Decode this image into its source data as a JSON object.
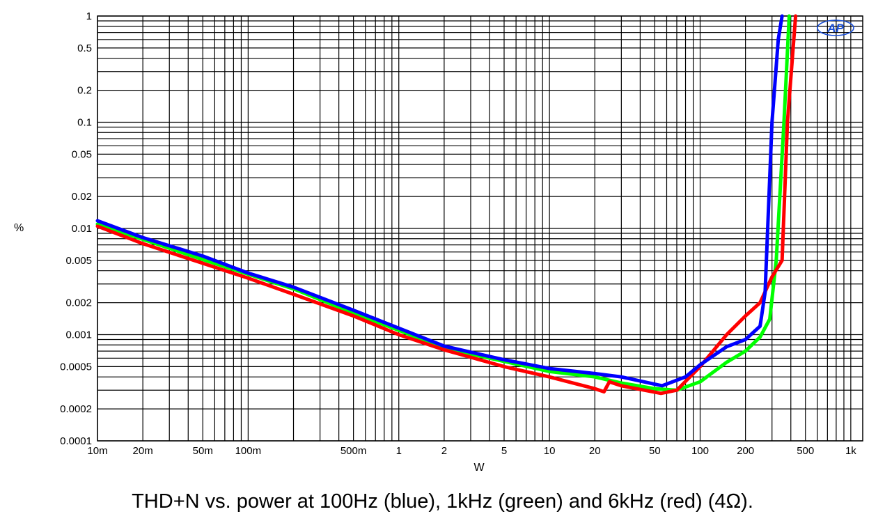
{
  "caption": "THD+N vs. power at 100Hz (blue), 1kHz (green) and 6kHz (red) (4Ω).",
  "logo_text": "AP",
  "chart_data": {
    "type": "line",
    "title": "",
    "xlabel": "W",
    "ylabel": "%",
    "xscale": "log",
    "yscale": "log",
    "xlim": [
      0.01,
      1200
    ],
    "ylim": [
      0.0001,
      1
    ],
    "grid": true,
    "x_ticks": [
      {
        "value": 0.01,
        "label": "10m"
      },
      {
        "value": 0.02,
        "label": "20m"
      },
      {
        "value": 0.05,
        "label": "50m"
      },
      {
        "value": 0.1,
        "label": "100m"
      },
      {
        "value": 0.5,
        "label": "500m"
      },
      {
        "value": 1,
        "label": "1"
      },
      {
        "value": 2,
        "label": "2"
      },
      {
        "value": 5,
        "label": "5"
      },
      {
        "value": 10,
        "label": "10"
      },
      {
        "value": 20,
        "label": "20"
      },
      {
        "value": 50,
        "label": "50"
      },
      {
        "value": 100,
        "label": "100"
      },
      {
        "value": 200,
        "label": "200"
      },
      {
        "value": 500,
        "label": "500"
      },
      {
        "value": 1000,
        "label": "1k"
      }
    ],
    "y_ticks": [
      {
        "value": 1,
        "label": "1"
      },
      {
        "value": 0.5,
        "label": "0.5"
      },
      {
        "value": 0.2,
        "label": "0.2"
      },
      {
        "value": 0.1,
        "label": "0.1"
      },
      {
        "value": 0.05,
        "label": "0.05"
      },
      {
        "value": 0.02,
        "label": "0.02"
      },
      {
        "value": 0.01,
        "label": "0.01"
      },
      {
        "value": 0.005,
        "label": "0.005"
      },
      {
        "value": 0.002,
        "label": "0.002"
      },
      {
        "value": 0.001,
        "label": "0.001"
      },
      {
        "value": 0.0005,
        "label": "0.0005"
      },
      {
        "value": 0.0002,
        "label": "0.0002"
      },
      {
        "value": 0.0001,
        "label": "0.0001"
      }
    ],
    "series": [
      {
        "color": "#0000ff",
        "points": [
          [
            0.01,
            0.0118
          ],
          [
            0.02,
            0.0082
          ],
          [
            0.05,
            0.0055
          ],
          [
            0.1,
            0.0038
          ],
          [
            0.2,
            0.0028
          ],
          [
            0.5,
            0.0017
          ],
          [
            1,
            0.00115
          ],
          [
            2,
            0.00078
          ],
          [
            5,
            0.00058
          ],
          [
            10,
            0.00048
          ],
          [
            20,
            0.00043
          ],
          [
            30,
            0.0004
          ],
          [
            56,
            0.00033
          ],
          [
            80,
            0.0004
          ],
          [
            100,
            0.00052
          ],
          [
            150,
            0.00077
          ],
          [
            200,
            0.0009
          ],
          [
            250,
            0.0012
          ],
          [
            270,
            0.0025
          ],
          [
            300,
            0.1
          ],
          [
            330,
            0.6
          ],
          [
            350,
            1.0
          ]
        ]
      },
      {
        "color": "#00ff00",
        "points": [
          [
            0.01,
            0.011
          ],
          [
            0.02,
            0.0079
          ],
          [
            0.05,
            0.0051
          ],
          [
            0.1,
            0.0037
          ],
          [
            0.2,
            0.0027
          ],
          [
            0.5,
            0.0016
          ],
          [
            1,
            0.0011
          ],
          [
            2,
            0.00075
          ],
          [
            5,
            0.00056
          ],
          [
            10,
            0.00045
          ],
          [
            20,
            0.0004
          ],
          [
            30,
            0.00035
          ],
          [
            50,
            0.00031
          ],
          [
            70,
            0.0003
          ],
          [
            100,
            0.00036
          ],
          [
            150,
            0.00055
          ],
          [
            200,
            0.0007
          ],
          [
            250,
            0.00095
          ],
          [
            290,
            0.0014
          ],
          [
            320,
            0.005
          ],
          [
            360,
            0.1
          ],
          [
            390,
            1.0
          ]
        ]
      },
      {
        "color": "#ff0000",
        "points": [
          [
            0.01,
            0.0105
          ],
          [
            0.02,
            0.0072
          ],
          [
            0.05,
            0.0047
          ],
          [
            0.1,
            0.0034
          ],
          [
            0.2,
            0.0024
          ],
          [
            0.5,
            0.0015
          ],
          [
            1,
            0.001
          ],
          [
            2,
            0.00072
          ],
          [
            5,
            0.0005
          ],
          [
            10,
            0.0004
          ],
          [
            20,
            0.00031
          ],
          [
            23,
            0.00029
          ],
          [
            25,
            0.00036
          ],
          [
            30,
            0.00033
          ],
          [
            55,
            0.00028
          ],
          [
            70,
            0.0003
          ],
          [
            100,
            0.0005
          ],
          [
            150,
            0.001
          ],
          [
            200,
            0.0015
          ],
          [
            250,
            0.002
          ],
          [
            300,
            0.0035
          ],
          [
            350,
            0.005
          ],
          [
            380,
            0.1
          ],
          [
            430,
            1.0
          ]
        ]
      }
    ]
  }
}
